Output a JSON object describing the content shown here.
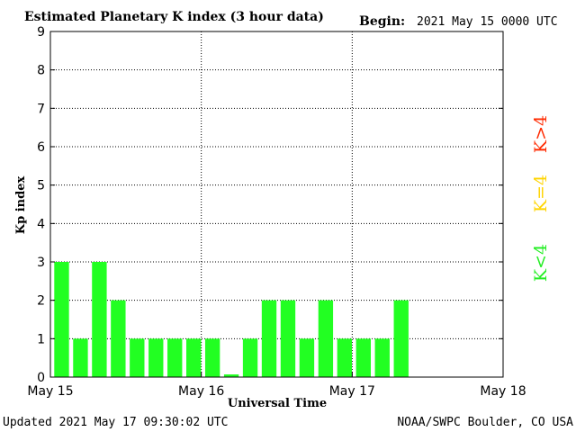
{
  "header": {
    "title": "Estimated Planetary K index (3 hour data)",
    "begin_label": "Begin:",
    "begin_value": "2021 May 15 0000 UTC"
  },
  "footer": {
    "updated": "Updated 2021 May 17 09:30:02 UTC",
    "source": "NOAA/SWPC Boulder, CO USA"
  },
  "legend": {
    "high": {
      "label": "K>4",
      "color": "#ff2a00"
    },
    "equal": {
      "label": "K=4",
      "color": "#ffd400"
    },
    "low": {
      "label": "K<4",
      "color": "#22ee22"
    }
  },
  "chart_data": {
    "type": "bar",
    "title": "Estimated Planetary K index (3 hour data)",
    "xlabel": "Universal Time",
    "ylabel": "Kp index",
    "ylim": [
      0,
      9
    ],
    "yticks": [
      "0",
      "1",
      "2",
      "3",
      "4",
      "5",
      "6",
      "7",
      "8",
      "9"
    ],
    "xticks": [
      "May 15",
      "May 16",
      "May 17",
      "May 18"
    ],
    "bins_per_day": 8,
    "total_bins": 24,
    "values": [
      3,
      1,
      3,
      2,
      1,
      1,
      1,
      1,
      1,
      0.07,
      1,
      2,
      2,
      1,
      2,
      1,
      1,
      1,
      2
    ],
    "bar_color": "#22ff22",
    "grid": true
  }
}
